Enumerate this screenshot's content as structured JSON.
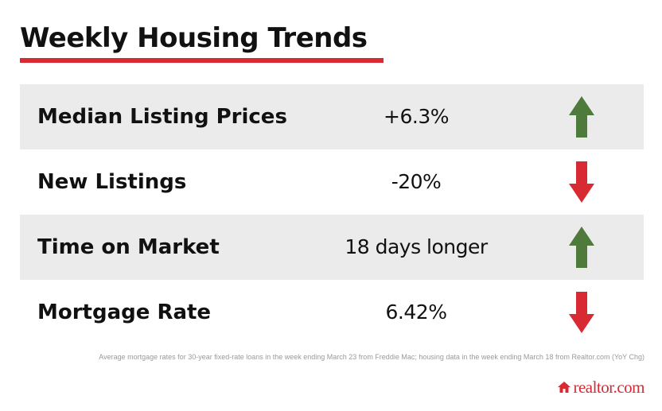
{
  "title": "Weekly Housing Trends",
  "colors": {
    "accent_red": "#d72a33",
    "arrow_up": "#4e7a3c",
    "arrow_down": "#d72a33",
    "row_shade": "#ebebeb"
  },
  "rows": [
    {
      "label": "Median Listing Prices",
      "value": "+6.3%",
      "direction": "up",
      "icon": "arrow-up-icon"
    },
    {
      "label": "New Listings",
      "value": "-20%",
      "direction": "down",
      "icon": "arrow-down-icon"
    },
    {
      "label": "Time on Market",
      "value": "18 days longer",
      "direction": "up",
      "icon": "arrow-up-icon"
    },
    {
      "label": "Mortgage Rate",
      "value": "6.42%",
      "direction": "down",
      "icon": "arrow-down-icon"
    }
  ],
  "footnote": "Average mortgage rates for 30-year fixed-rate loans in the week ending March 23 from Freddie Mac; housing data in the week ending March 18 from Realtor.com (YoY Chg)",
  "logo": {
    "icon": "house-icon",
    "text": "realtor.com"
  }
}
